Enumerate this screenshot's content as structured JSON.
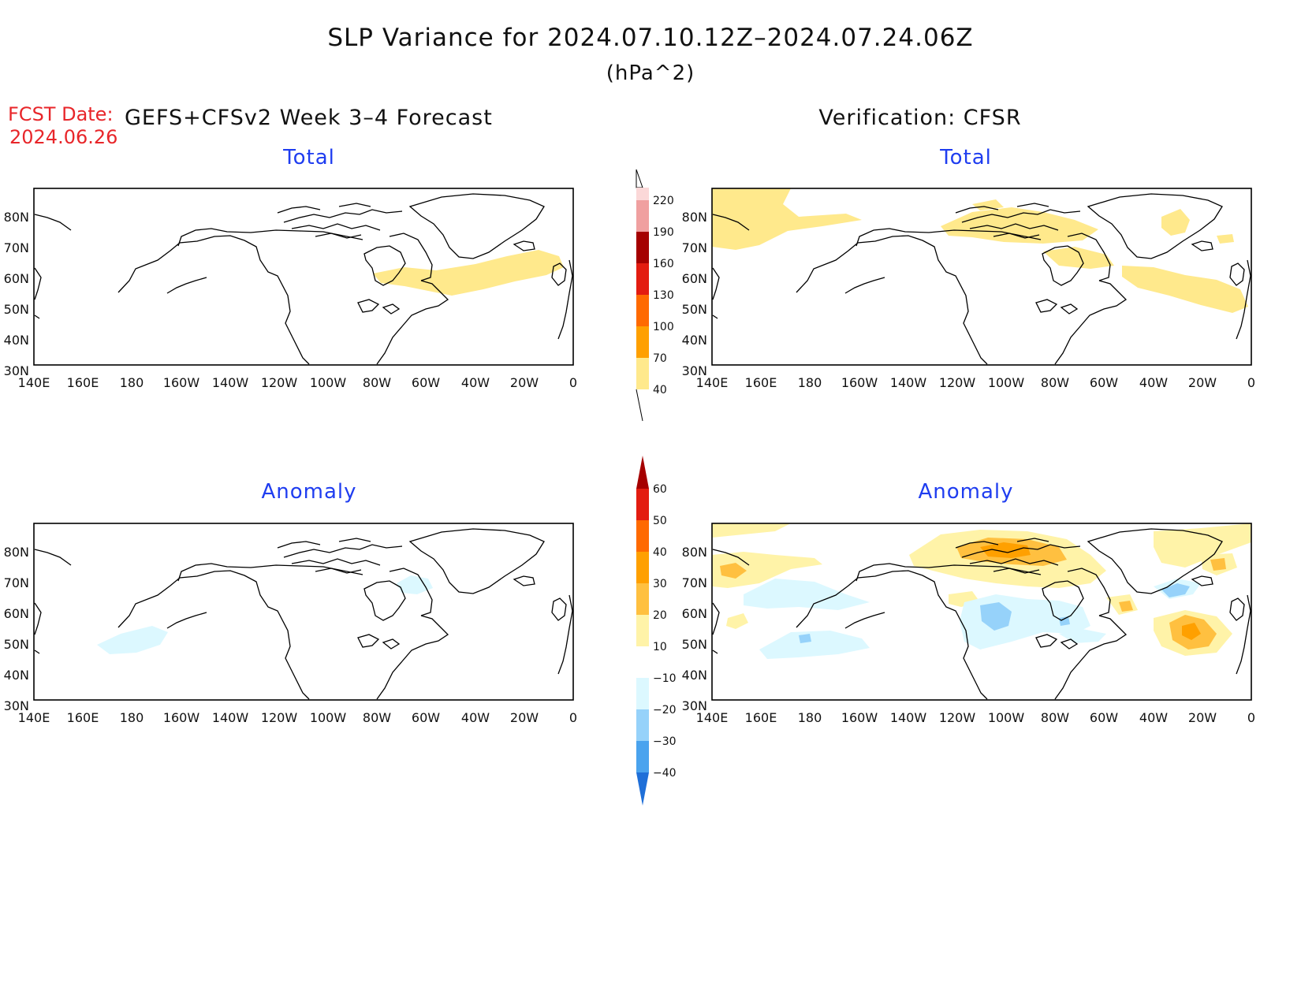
{
  "title": "SLP Variance for 2024.07.10.12Z–2024.07.24.06Z",
  "units": "(hPa^2)",
  "fcst_date_label": "FCST Date:",
  "fcst_date": "2024.06.26",
  "left_header": "GEFS+CFSv2 Week 3–4 Forecast",
  "right_header": "Verification: CFSR",
  "panels": [
    {
      "id": "forecast-total",
      "subtitle": "Total"
    },
    {
      "id": "verification-total",
      "subtitle": "Total"
    },
    {
      "id": "forecast-anomaly",
      "subtitle": "Anomaly"
    },
    {
      "id": "verification-anomaly",
      "subtitle": "Anomaly"
    }
  ],
  "lon_labels": [
    "140E",
    "160E",
    "180",
    "160W",
    "140W",
    "120W",
    "100W",
    "80W",
    "60W",
    "40W",
    "20W",
    "0"
  ],
  "lat_labels": [
    "80N",
    "70N",
    "60N",
    "50N",
    "40N",
    "30N"
  ],
  "map_extent": {
    "lon_min": 140,
    "lon_max": 360,
    "lat_min": 25,
    "lat_max": 85
  },
  "total_colorbar": {
    "levels": [
      "40",
      "70",
      "100",
      "130",
      "160",
      "190",
      "220"
    ],
    "colors": [
      "#ffe98c",
      "#ffa000",
      "#ff6a00",
      "#e31c10",
      "#a50000",
      "#f0a0a0",
      "#fbd8d8",
      "#ffffff"
    ]
  },
  "anomaly_colorbar": {
    "levels": [
      "60",
      "50",
      "40",
      "30",
      "20",
      "10",
      "−10",
      "−20",
      "−30",
      "−40"
    ],
    "colors": [
      "#a50000",
      "#e31c10",
      "#ff6a00",
      "#ffa000",
      "#ffc040",
      "#fff3a8",
      "#ffffff",
      "#dcf8ff",
      "#96d2fa",
      "#4aa3ee",
      "#1f6fd8"
    ]
  }
}
